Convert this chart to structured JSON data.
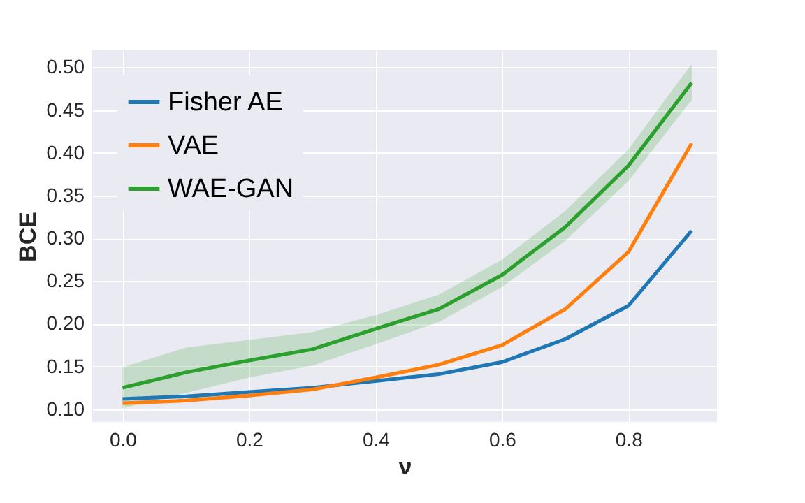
{
  "chart_data": {
    "type": "line",
    "xlabel": "ν",
    "ylabel": "BCE",
    "x": [
      0.0,
      0.1,
      0.2,
      0.3,
      0.4,
      0.5,
      0.6,
      0.7,
      0.8,
      0.9
    ],
    "series": [
      {
        "name": "Fisher AE",
        "color": "#1f77b4",
        "values": [
          0.112,
          0.115,
          0.12,
          0.125,
          0.133,
          0.141,
          0.155,
          0.182,
          0.221,
          0.309
        ]
      },
      {
        "name": "VAE",
        "color": "#ff7f0e",
        "values": [
          0.107,
          0.11,
          0.116,
          0.123,
          0.137,
          0.152,
          0.175,
          0.217,
          0.284,
          0.411
        ]
      },
      {
        "name": "WAE-GAN",
        "color": "#2ca02c",
        "values": [
          0.125,
          0.143,
          0.157,
          0.17,
          0.194,
          0.217,
          0.257,
          0.313,
          0.385,
          0.482
        ],
        "lower": [
          0.101,
          0.119,
          0.137,
          0.151,
          0.176,
          0.202,
          0.243,
          0.297,
          0.367,
          0.462
        ],
        "upper": [
          0.149,
          0.172,
          0.181,
          0.19,
          0.21,
          0.234,
          0.275,
          0.332,
          0.404,
          0.504
        ]
      }
    ],
    "xlim": [
      -0.048,
      0.94
    ],
    "ylim": [
      0.085,
      0.52
    ],
    "xticks": [
      {
        "value": 0.0,
        "label": "0.0"
      },
      0.2,
      0.4,
      0.6,
      0.8
    ],
    "yticks": [
      {
        "value": 0.1,
        "label": "0.10"
      },
      0.15,
      {
        "value": 0.2,
        "label": "0.20"
      },
      0.25,
      {
        "value": 0.3,
        "label": "0.30"
      },
      0.35,
      {
        "value": 0.4,
        "label": "0.40"
      },
      0.45,
      {
        "value": 0.5,
        "label": "0.50"
      }
    ],
    "grid": true,
    "legend": "top left",
    "marker": "none",
    "line_style": "solid"
  }
}
